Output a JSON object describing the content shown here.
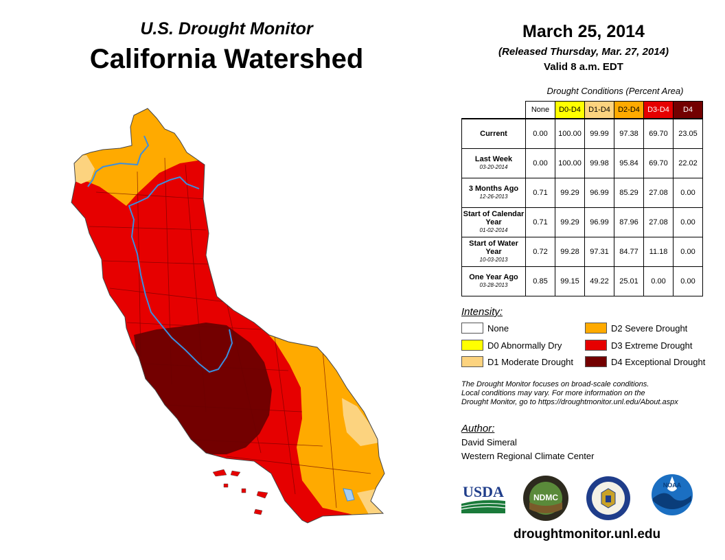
{
  "header": {
    "subtitle": "U.S. Drought Monitor",
    "title": "California Watershed",
    "date": "March 25, 2014",
    "released": "(Released Thursday, Mar. 27, 2014)",
    "valid": "Valid 8 a.m. EDT"
  },
  "table": {
    "caption": "Drought Conditions (Percent Area)",
    "columns": [
      {
        "label": "None",
        "color": "#ffffff",
        "text_color": "#000000"
      },
      {
        "label": "D0-D4",
        "color": "#ffff00",
        "text_color": "#000000"
      },
      {
        "label": "D1-D4",
        "color": "#fcd37f",
        "text_color": "#000000"
      },
      {
        "label": "D2-D4",
        "color": "#ffaa00",
        "text_color": "#000000"
      },
      {
        "label": "D3-D4",
        "color": "#e60000",
        "text_color": "#ffffff"
      },
      {
        "label": "D4",
        "color": "#730000",
        "text_color": "#ffffff"
      }
    ],
    "rows": [
      {
        "label": "Current",
        "date": "",
        "values": [
          "0.00",
          "100.00",
          "99.99",
          "97.38",
          "69.70",
          "23.05"
        ]
      },
      {
        "label": "Last Week",
        "date": "03-20-2014",
        "values": [
          "0.00",
          "100.00",
          "99.98",
          "95.84",
          "69.70",
          "22.02"
        ]
      },
      {
        "label": "3 Months Ago",
        "date": "12-26-2013",
        "values": [
          "0.71",
          "99.29",
          "96.99",
          "85.29",
          "27.08",
          "0.00"
        ]
      },
      {
        "label": "Start of Calendar Year",
        "date": "01-02-2014",
        "values": [
          "0.71",
          "99.29",
          "96.99",
          "87.96",
          "27.08",
          "0.00"
        ]
      },
      {
        "label": "Start of Water Year",
        "date": "10-03-2013",
        "values": [
          "0.72",
          "99.28",
          "97.31",
          "84.77",
          "11.18",
          "0.00"
        ]
      },
      {
        "label": "One Year Ago",
        "date": "03-28-2013",
        "values": [
          "0.85",
          "99.15",
          "49.22",
          "25.01",
          "0.00",
          "0.00"
        ]
      }
    ]
  },
  "legend": {
    "heading": "Intensity:",
    "items": [
      {
        "label": "None",
        "color": "#ffffff"
      },
      {
        "label": "D0 Abnormally Dry",
        "color": "#ffff00"
      },
      {
        "label": "D1 Moderate Drought",
        "color": "#fcd37f"
      },
      {
        "label": "D2 Severe Drought",
        "color": "#ffaa00"
      },
      {
        "label": "D3 Extreme Drought",
        "color": "#e60000"
      },
      {
        "label": "D4 Exceptional Drought",
        "color": "#730000"
      }
    ]
  },
  "disclaimer": {
    "line1": "The Drought Monitor focuses on broad-scale conditions.",
    "line2": "Local conditions may vary. For more information on the",
    "line3": "Drought Monitor, go to https://droughtmonitor.unl.edu/About.aspx"
  },
  "author": {
    "heading": "Author:",
    "name": "David Simeral",
    "org": "Western Regional Climate Center"
  },
  "logos": {
    "usda": "USDA",
    "ndmc": "NDMC",
    "noaa": "NOAA"
  },
  "footer": {
    "url": "droughtmonitor.unl.edu"
  },
  "icons": [
    "usda-logo-icon",
    "ndmc-logo-icon",
    "commerce-seal-icon",
    "noaa-logo-icon"
  ]
}
